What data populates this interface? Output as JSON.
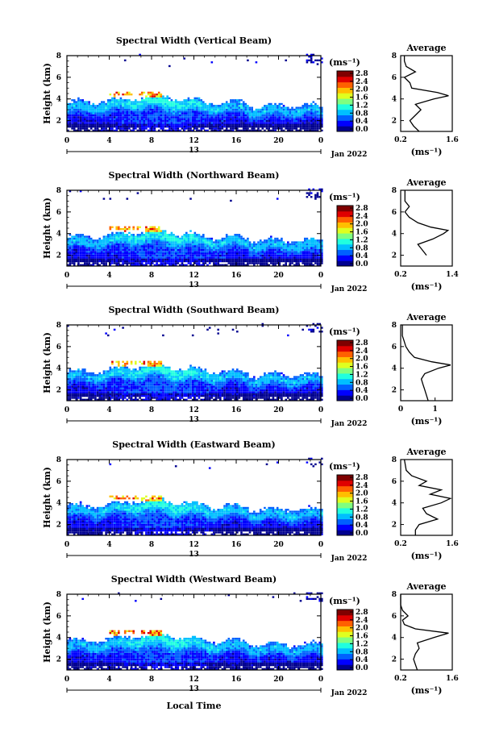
{
  "figure": {
    "xlabel": "Local Time",
    "date_label": "Jan 2022",
    "day_label": "13",
    "ylabel": "Height (km)",
    "unit": "(ms⁻¹)",
    "colorbar_ticks": [
      "0.0",
      "0.4",
      "0.8",
      "1.2",
      "1.6",
      "2.0",
      "2.4",
      "2.8"
    ],
    "colormap": [
      "#00008f",
      "#0000ff",
      "#0060ff",
      "#00bfff",
      "#20ffdf",
      "#80ff80",
      "#dfff20",
      "#ffbf00",
      "#ff6000",
      "#e00000",
      "#800000"
    ]
  },
  "chart_data": [
    {
      "type": "heatmap",
      "title": "Spectral Width (Vertical Beam)",
      "average_title": "Average",
      "x_ticks": [
        "0",
        "4",
        "8",
        "12",
        "16",
        "20",
        "0"
      ],
      "y_ticks": [
        "2",
        "4",
        "6",
        "8"
      ],
      "xlim": [
        0,
        24
      ],
      "ylim": [
        1,
        8
      ],
      "profile_x_ticks": [
        "0.2",
        "1.6"
      ],
      "profile_xlim": [
        0.2,
        1.6
      ],
      "profile": [
        [
          1.0,
          0.7
        ],
        [
          1.5,
          0.55
        ],
        [
          2.0,
          0.45
        ],
        [
          2.5,
          0.6
        ],
        [
          3.0,
          0.75
        ],
        [
          3.5,
          0.6
        ],
        [
          4.0,
          1.1
        ],
        [
          4.3,
          1.5
        ],
        [
          4.6,
          1.2
        ],
        [
          5.0,
          0.5
        ],
        [
          5.5,
          0.45
        ],
        [
          6.0,
          0.3
        ],
        [
          6.5,
          0.6
        ],
        [
          7.0,
          0.35
        ],
        [
          7.5,
          0.3
        ],
        [
          8.0,
          0.3
        ]
      ]
    },
    {
      "type": "heatmap",
      "title": "Spectral Width (Northward Beam)",
      "average_title": "Average",
      "x_ticks": [
        "0",
        "4",
        "8",
        "12",
        "16",
        "20",
        "0"
      ],
      "y_ticks": [
        "2",
        "4",
        "6",
        "8"
      ],
      "xlim": [
        0,
        24
      ],
      "ylim": [
        1,
        8
      ],
      "profile_x_ticks": [
        "0.2",
        "1.4"
      ],
      "profile_xlim": [
        0.2,
        1.4
      ],
      "profile": [
        [
          2.0,
          0.8
        ],
        [
          2.5,
          0.7
        ],
        [
          3.0,
          0.6
        ],
        [
          3.5,
          0.95
        ],
        [
          4.0,
          1.2
        ],
        [
          4.3,
          1.3
        ],
        [
          4.6,
          0.9
        ],
        [
          5.0,
          0.6
        ],
        [
          5.5,
          0.4
        ],
        [
          6.0,
          0.3
        ],
        [
          6.5,
          0.4
        ],
        [
          7.0,
          0.3
        ],
        [
          8.0,
          0.3
        ]
      ]
    },
    {
      "type": "heatmap",
      "title": "Spectral Width (Southward Beam)",
      "average_title": "Average",
      "x_ticks": [
        "0",
        "4",
        "8",
        "12",
        "16",
        "20",
        "0"
      ],
      "y_ticks": [
        "2",
        "4",
        "6",
        "8"
      ],
      "xlim": [
        0,
        24
      ],
      "ylim": [
        1,
        8
      ],
      "profile_x_ticks": [
        "0",
        "1"
      ],
      "profile_xlim": [
        0,
        1.5
      ],
      "profile": [
        [
          1.0,
          0.8
        ],
        [
          1.5,
          0.75
        ],
        [
          2.0,
          0.7
        ],
        [
          2.5,
          0.65
        ],
        [
          3.0,
          0.6
        ],
        [
          3.5,
          0.7
        ],
        [
          4.0,
          1.1
        ],
        [
          4.3,
          1.45
        ],
        [
          4.6,
          0.9
        ],
        [
          5.0,
          0.4
        ],
        [
          5.5,
          0.25
        ],
        [
          6.0,
          0.15
        ],
        [
          6.5,
          0.1
        ],
        [
          7.0,
          0.05
        ],
        [
          8.0,
          0.05
        ]
      ]
    },
    {
      "type": "heatmap",
      "title": "Spectral Width (Eastward Beam)",
      "average_title": "Average",
      "x_ticks": [
        "0",
        "4",
        "8",
        "12",
        "16",
        "20",
        "0"
      ],
      "y_ticks": [
        "2",
        "4",
        "6",
        "8"
      ],
      "xlim": [
        0,
        24
      ],
      "ylim": [
        1,
        8
      ],
      "profile_x_ticks": [
        "0.2",
        "1.6"
      ],
      "profile_xlim": [
        0.2,
        1.6
      ],
      "profile": [
        [
          1.0,
          0.6
        ],
        [
          1.5,
          0.6
        ],
        [
          2.0,
          0.7
        ],
        [
          2.5,
          1.2
        ],
        [
          3.0,
          0.9
        ],
        [
          3.5,
          0.8
        ],
        [
          4.0,
          1.3
        ],
        [
          4.4,
          1.55
        ],
        [
          4.8,
          1.0
        ],
        [
          5.2,
          1.3
        ],
        [
          5.6,
          0.7
        ],
        [
          6.0,
          0.9
        ],
        [
          6.5,
          0.5
        ],
        [
          7.0,
          0.35
        ],
        [
          8.0,
          0.3
        ]
      ]
    },
    {
      "type": "heatmap",
      "title": "Spectral Width (Westward Beam)",
      "average_title": "Average",
      "x_ticks": [
        "0",
        "4",
        "8",
        "12",
        "16",
        "20",
        "0"
      ],
      "y_ticks": [
        "2",
        "4",
        "6",
        "8"
      ],
      "xlim": [
        0,
        24
      ],
      "ylim": [
        1,
        8
      ],
      "profile_x_ticks": [
        "0.2",
        "1.6"
      ],
      "profile_xlim": [
        0.2,
        1.6
      ],
      "profile": [
        [
          1.0,
          0.65
        ],
        [
          1.5,
          0.6
        ],
        [
          2.0,
          0.55
        ],
        [
          2.5,
          0.6
        ],
        [
          3.0,
          0.7
        ],
        [
          3.5,
          0.65
        ],
        [
          4.0,
          1.1
        ],
        [
          4.4,
          1.5
        ],
        [
          4.8,
          0.6
        ],
        [
          5.2,
          0.3
        ],
        [
          5.6,
          0.25
        ],
        [
          6.0,
          0.4
        ],
        [
          6.5,
          0.25
        ],
        [
          7.0,
          0.2
        ],
        [
          8.0,
          0.2
        ]
      ]
    }
  ]
}
